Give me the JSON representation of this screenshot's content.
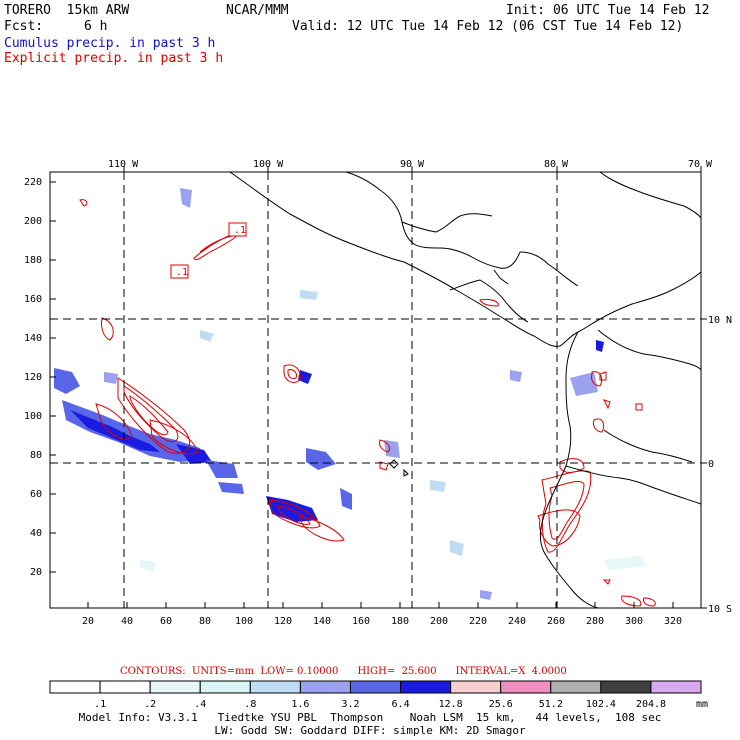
{
  "header": {
    "model": "TORERO  15km ARW",
    "center": "NCAR/MMM",
    "init": "Init: 06 UTC Tue 14 Feb 12",
    "fcst_label": "Fcst:",
    "fcst_value": "6 h",
    "valid": "Valid: 12 UTC Tue 14 Feb 12 (06 CST Tue 14 Feb 12)",
    "cumulus": "Cumulus precip. in past 3 h",
    "explicit": "Explicit precip. in past 3 h"
  },
  "colors": {
    "cumulus": "#1010c8",
    "explicit": "#dd0000"
  },
  "map": {
    "top_longitude_labels": [
      "110 W",
      "100 W",
      "90 W",
      "80 W",
      "70 W"
    ],
    "right_latitude_labels": [
      "10 N",
      "0",
      "10 S"
    ],
    "y_tick_labels": [
      "220",
      "200",
      "180",
      "160",
      "140",
      "120",
      "100",
      "80",
      "60",
      "40",
      "20"
    ],
    "x_tick_labels": [
      "20",
      "40",
      "60",
      "80",
      "100",
      "120",
      "140",
      "160",
      "180",
      "200",
      "220",
      "240",
      "260",
      "280",
      "300",
      "320"
    ],
    "contour_labels": [
      ".1",
      ".1"
    ]
  },
  "contours": {
    "text": "CONTOURS:  UNITS=mm  LOW= 0.10000      HIGH=  25.600      INTERVAL=X  4.0000"
  },
  "colorbar": {
    "labels": [
      ".1",
      ".2",
      ".4",
      ".8",
      "1.6",
      "3.2",
      "6.4",
      "12.8",
      "25.6",
      "51.2",
      "102.4",
      "204.8"
    ],
    "unit": "mm",
    "colors": [
      "#ffffff",
      "#ffffff",
      "#e6f6f9",
      "#d9f4f4",
      "#bfdcf5",
      "#9aa2f0",
      "#5a66e8",
      "#1a1ae0",
      "#f6d0d0",
      "#f090c0",
      "#b0b0b0",
      "#404040",
      "#d8a8f0"
    ]
  },
  "footer": {
    "line1": "Model Info: V3.3.1   Tiedtke YSU PBL  Thompson    Noah LSM  15 km,   44 levels,  108 sec",
    "line2": "LW: Godd SW: Goddard DIFF: simple KM: 2D Smagor"
  }
}
